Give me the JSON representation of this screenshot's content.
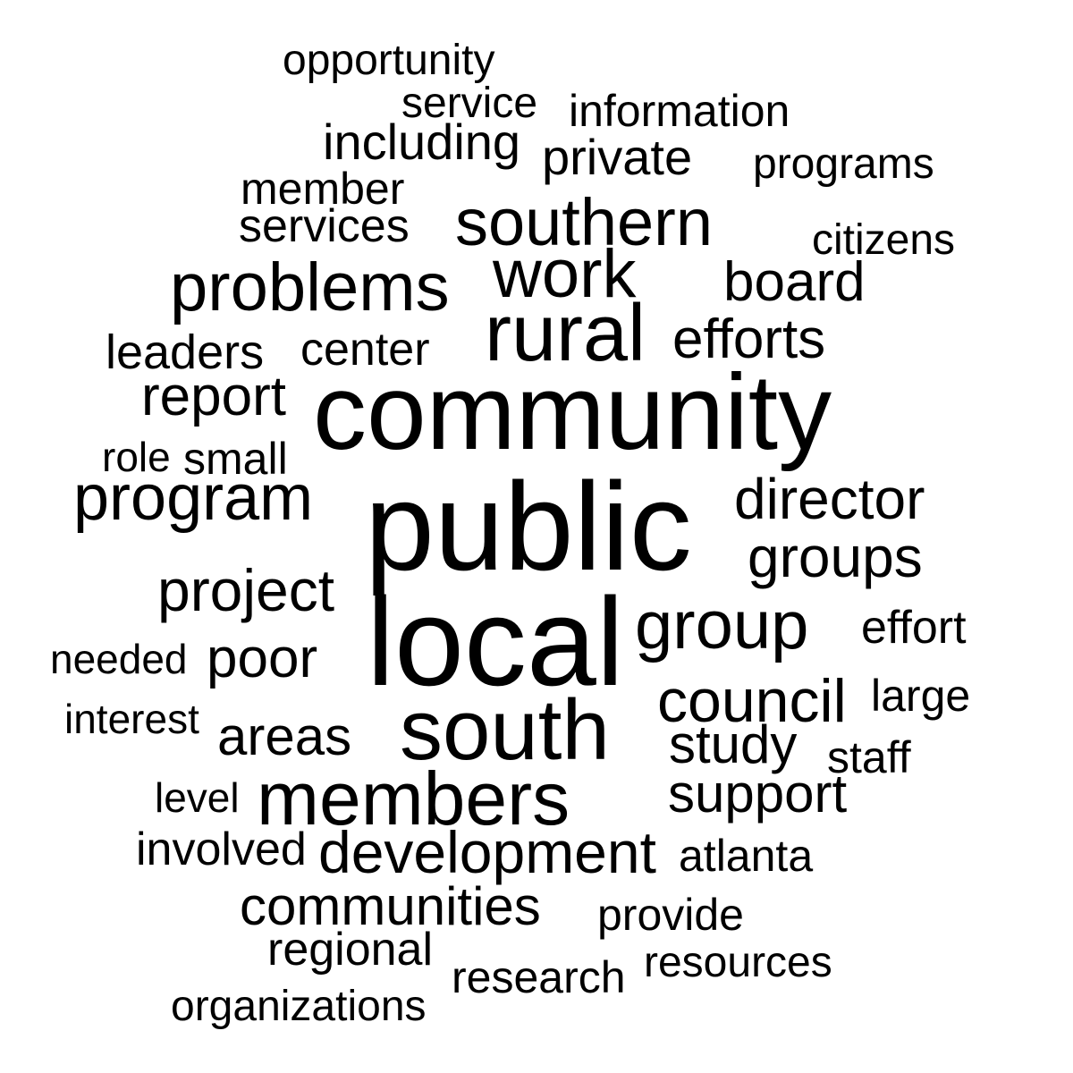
{
  "word_cloud": {
    "text_color": "#000000",
    "background_color": "#ffffff",
    "words": [
      {
        "text": "opportunity"
      },
      {
        "text": "service"
      },
      {
        "text": "information"
      },
      {
        "text": "including"
      },
      {
        "text": "private"
      },
      {
        "text": "programs"
      },
      {
        "text": "member"
      },
      {
        "text": "services"
      },
      {
        "text": "southern"
      },
      {
        "text": "citizens"
      },
      {
        "text": "problems"
      },
      {
        "text": "work"
      },
      {
        "text": "board"
      },
      {
        "text": "rural"
      },
      {
        "text": "efforts"
      },
      {
        "text": "leaders"
      },
      {
        "text": "center"
      },
      {
        "text": "report"
      },
      {
        "text": "community"
      },
      {
        "text": "role"
      },
      {
        "text": "small"
      },
      {
        "text": "program"
      },
      {
        "text": "public"
      },
      {
        "text": "director"
      },
      {
        "text": "groups"
      },
      {
        "text": "project"
      },
      {
        "text": "local"
      },
      {
        "text": "group"
      },
      {
        "text": "effort"
      },
      {
        "text": "needed"
      },
      {
        "text": "poor"
      },
      {
        "text": "council"
      },
      {
        "text": "large"
      },
      {
        "text": "interest"
      },
      {
        "text": "areas"
      },
      {
        "text": "south"
      },
      {
        "text": "study"
      },
      {
        "text": "staff"
      },
      {
        "text": "level"
      },
      {
        "text": "members"
      },
      {
        "text": "support"
      },
      {
        "text": "involved"
      },
      {
        "text": "development"
      },
      {
        "text": "atlanta"
      },
      {
        "text": "communities"
      },
      {
        "text": "provide"
      },
      {
        "text": "regional"
      },
      {
        "text": "resources"
      },
      {
        "text": "research"
      },
      {
        "text": "organizations"
      }
    ]
  }
}
